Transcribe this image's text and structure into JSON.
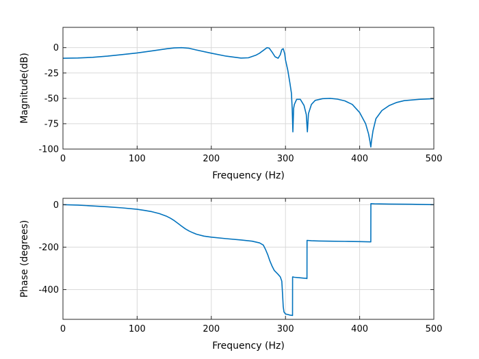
{
  "colors": {
    "series": "#0072BD",
    "grid": "#d9d9d9",
    "axis": "#262626"
  },
  "chart_data": [
    {
      "type": "line",
      "xlabel": "Frequency (Hz)",
      "ylabel": "Magnitude(dB)",
      "xlim": [
        0,
        500
      ],
      "ylim": [
        -100,
        20
      ],
      "xticks": [
        0,
        100,
        200,
        300,
        400,
        500
      ],
      "yticks": [
        0,
        -25,
        -50,
        -75,
        -100
      ],
      "grid": true,
      "series": [
        {
          "x": [
            0,
            20,
            40,
            60,
            80,
            100,
            120,
            140,
            150,
            160,
            170,
            180,
            200,
            220,
            240,
            250,
            260,
            265,
            270,
            275,
            278,
            282,
            286,
            290,
            293,
            295,
            297,
            299,
            300,
            303,
            306,
            308,
            309,
            310,
            311,
            312,
            315,
            320,
            325,
            328,
            329.5,
            331,
            335,
            340,
            350,
            360,
            370,
            380,
            390,
            400,
            408,
            412,
            414,
            415,
            416,
            418,
            422,
            430,
            440,
            450,
            460,
            480,
            500
          ],
          "y": [
            -10.5,
            -10.2,
            -9.5,
            -8.4,
            -6.8,
            -5.2,
            -3.2,
            -1.1,
            -0.3,
            0,
            -0.6,
            -2.3,
            -5.5,
            -8.4,
            -10.3,
            -10,
            -7.5,
            -5.5,
            -2.8,
            0,
            -0.5,
            -4.5,
            -9,
            -10.5,
            -7,
            -2,
            -1,
            -6,
            -12,
            -22,
            -35,
            -45,
            -60,
            -83,
            -60,
            -56,
            -51,
            -51,
            -57,
            -66,
            -83,
            -65,
            -56,
            -52,
            -50.3,
            -50,
            -50.8,
            -52.5,
            -56,
            -64,
            -75,
            -85,
            -93,
            -98,
            -92,
            -82,
            -70,
            -62,
            -57,
            -54,
            -52.3,
            -51,
            -50.3
          ]
        }
      ]
    },
    {
      "type": "line",
      "xlabel": "Frequency (Hz)",
      "ylabel": "Phase (degrees)",
      "xlim": [
        0,
        500
      ],
      "ylim": [
        -540,
        30
      ],
      "xticks": [
        0,
        100,
        200,
        300,
        400,
        500
      ],
      "yticks": [
        0,
        -200,
        -400
      ],
      "grid": true,
      "series": [
        {
          "x": [
            0,
            20,
            40,
            60,
            80,
            100,
            110,
            120,
            130,
            140,
            145,
            150,
            155,
            160,
            165,
            170,
            175,
            180,
            190,
            200,
            220,
            240,
            255,
            265,
            270,
            273,
            276,
            279,
            282,
            285,
            290,
            293,
            295,
            296,
            297,
            298,
            300,
            303,
            306,
            308,
            309.5,
            309.6,
            312,
            318,
            325,
            328.5,
            329,
            329.1,
            335,
            345,
            360,
            380,
            400,
            414,
            415,
            415.1,
            420,
            440,
            470,
            500
          ],
          "y": [
            0,
            -2,
            -6,
            -10,
            -15,
            -22,
            -27,
            -33,
            -42,
            -55,
            -64,
            -75,
            -88,
            -101,
            -114,
            -124,
            -132,
            -139,
            -148,
            -153,
            -160,
            -166,
            -172,
            -180,
            -190,
            -210,
            -235,
            -265,
            -290,
            -310,
            -328,
            -340,
            -360,
            -420,
            -480,
            -505,
            -515,
            -517,
            -520,
            -521,
            -522,
            -340,
            -342,
            -344,
            -346,
            -347,
            -348,
            -168,
            -170,
            -171,
            -172,
            -173,
            -174,
            -175,
            -175,
            5,
            4,
            3,
            2,
            0
          ]
        }
      ]
    }
  ]
}
